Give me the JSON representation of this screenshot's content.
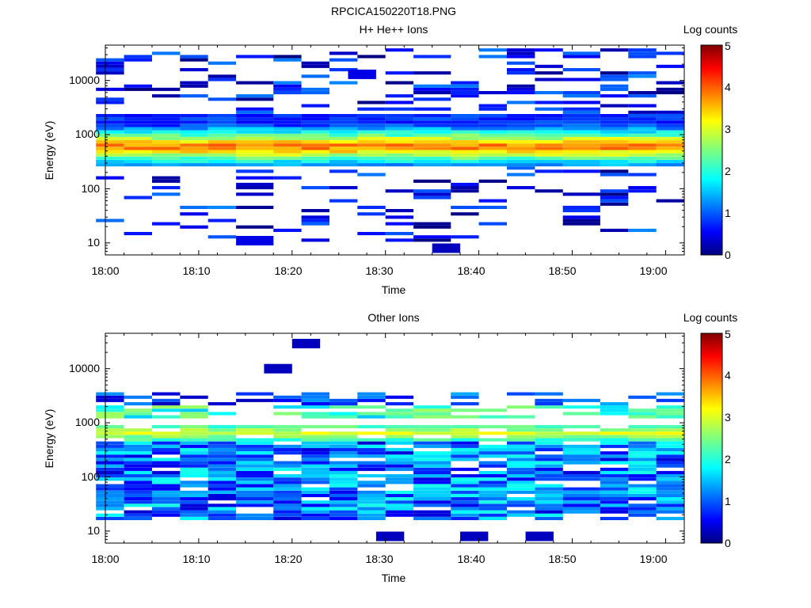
{
  "figure_title": "RPCICA150220T18.PNG",
  "chart_data": [
    {
      "type": "heatmap",
      "title": "H+ He++ Ions",
      "xlabel": "Time",
      "ylabel": "Energy (eV)",
      "x_ticks": [
        "18:00",
        "18:10",
        "18:20",
        "18:30",
        "18:40",
        "18:50",
        "19:00"
      ],
      "x_range": [
        "18:00",
        "19:02"
      ],
      "y_scale": "log",
      "y_range": [
        6,
        45000
      ],
      "y_ticks": [
        "10",
        "100",
        "1000",
        "10000"
      ],
      "colorbar": {
        "label": "Log counts",
        "ticks": [
          "0",
          "1",
          "2",
          "3",
          "4",
          "5"
        ],
        "range": [
          0,
          5
        ]
      },
      "time_bins": [
        "18:02",
        "18:05",
        "18:08",
        "18:11",
        "18:14",
        "18:18",
        "18:21",
        "18:24",
        "18:27",
        "18:30",
        "18:33",
        "18:37",
        "18:40",
        "18:43",
        "18:46",
        "18:49",
        "18:53",
        "18:56",
        "18:59",
        "19:02"
      ],
      "core_band_energy_eV": [
        250,
        2500
      ],
      "peak_energy_eV": 600,
      "peak_log_counts": 4.2,
      "sparse_counts_range_eV": [
        10,
        40000
      ],
      "isolated_spots": [
        {
          "time": "18:18",
          "energy_eV": 11,
          "log_counts": 0.5
        },
        {
          "time": "18:38",
          "energy_eV": 8,
          "log_counts": 0.3
        },
        {
          "time": "18:29",
          "energy_eV": 13000,
          "log_counts": 0.5
        }
      ]
    },
    {
      "type": "heatmap",
      "title": "Other Ions",
      "xlabel": "Time",
      "ylabel": "Energy (eV)",
      "x_ticks": [
        "18:00",
        "18:10",
        "18:20",
        "18:30",
        "18:40",
        "18:50",
        "19:00"
      ],
      "x_range": [
        "18:00",
        "19:02"
      ],
      "y_scale": "log",
      "y_range": [
        6,
        45000
      ],
      "y_ticks": [
        "10",
        "100",
        "1000",
        "10000"
      ],
      "colorbar": {
        "label": "Log counts",
        "ticks": [
          "0",
          "1",
          "2",
          "3",
          "4",
          "5"
        ],
        "range": [
          0,
          5
        ]
      },
      "time_bins": [
        "18:02",
        "18:05",
        "18:08",
        "18:11",
        "18:14",
        "18:18",
        "18:21",
        "18:24",
        "18:27",
        "18:30",
        "18:33",
        "18:37",
        "18:40",
        "18:43",
        "18:46",
        "18:49",
        "18:53",
        "18:56",
        "18:59",
        "19:02"
      ],
      "main_band_energy_eV": [
        16,
        900
      ],
      "secondary_band_energy_eV": [
        1200,
        2000
      ],
      "peak_energy_eV": 650,
      "peak_log_counts": 3.2,
      "isolated_spots": [
        {
          "time": "18:20",
          "energy_eV": 10000,
          "log_counts": 0.3
        },
        {
          "time": "18:23",
          "energy_eV": 29000,
          "log_counts": 0.3
        },
        {
          "time": "18:32",
          "energy_eV": 8,
          "log_counts": 0.3
        },
        {
          "time": "18:41",
          "energy_eV": 8,
          "log_counts": 0.3
        },
        {
          "time": "18:48",
          "energy_eV": 8,
          "log_counts": 0.3
        }
      ]
    }
  ]
}
